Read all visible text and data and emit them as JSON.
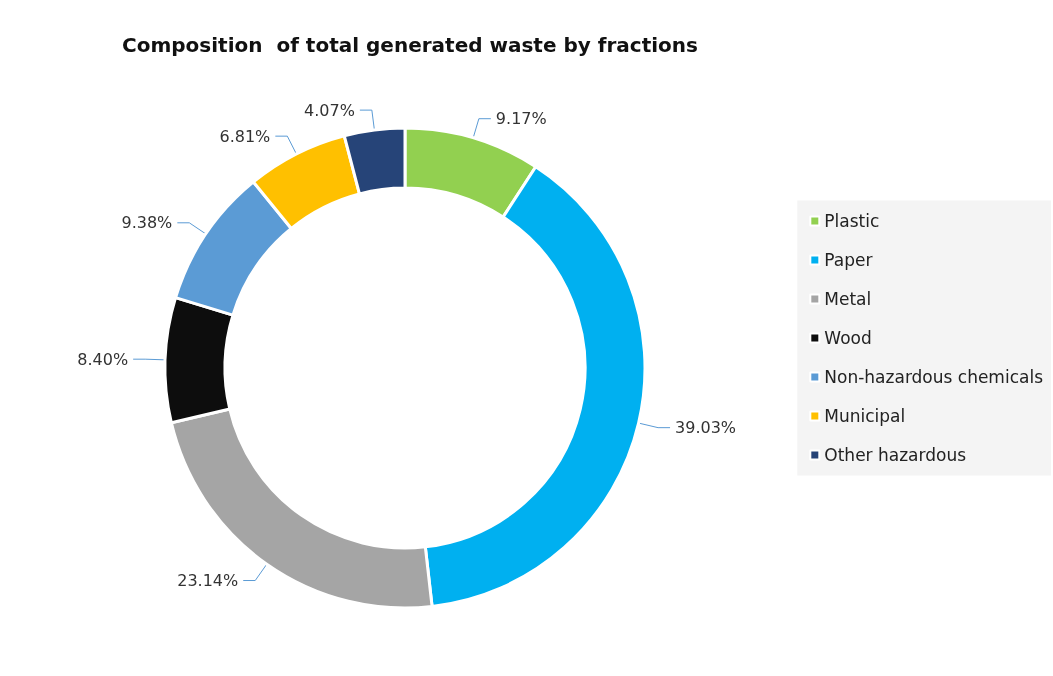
{
  "chart_data": {
    "type": "donut",
    "title": "Composition  of total generated waste by fractions",
    "categories": [
      "Plastic",
      "Paper",
      "Metal",
      "Wood",
      "Non-hazardous chemicals",
      "Municipal",
      "Other hazardous"
    ],
    "values": [
      9.17,
      39.03,
      23.14,
      8.4,
      9.38,
      6.81,
      4.07
    ],
    "value_labels": [
      "9.17%",
      "39.03%",
      "23.14%",
      "8.40%",
      "9.38%",
      "6.81%",
      "4.07%"
    ],
    "colors": [
      "#92d050",
      "#00b0f0",
      "#a5a5a5",
      "#0d0d0d",
      "#5b9bd5",
      "#ffc000",
      "#264478"
    ],
    "legend": "right"
  }
}
